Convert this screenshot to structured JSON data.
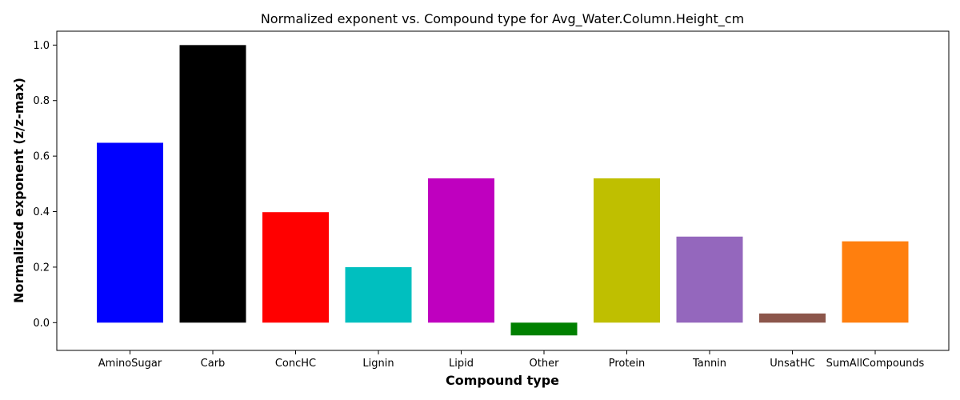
{
  "chart_data": {
    "type": "bar",
    "title": "Normalized exponent vs. Compound type for Avg_Water.Column.Height_cm",
    "xlabel": "Compound type",
    "ylabel": "Normalized exponent (z/z-max)",
    "categories": [
      "AminoSugar",
      "Carb",
      "ConcHC",
      "Lignin",
      "Lipid",
      "Other",
      "Protein",
      "Tannin",
      "UnsatHC",
      "SumAllCompounds"
    ],
    "values": [
      0.648,
      1.0,
      0.398,
      0.2,
      0.52,
      -0.046,
      0.52,
      0.31,
      0.033,
      0.293
    ],
    "colors": [
      "#0000ff",
      "#000000",
      "#ff0000",
      "#00bfbf",
      "#bf00bf",
      "#008000",
      "#bfbf00",
      "#9467bd",
      "#8c564b",
      "#ff7f0e"
    ],
    "ylim": [
      -0.1,
      1.05
    ],
    "yticks": [
      0.0,
      0.2,
      0.4,
      0.6,
      0.8,
      1.0
    ],
    "ytick_labels": [
      "0.0",
      "0.2",
      "0.4",
      "0.6",
      "0.8",
      "1.0"
    ],
    "grid": false,
    "legend": "none"
  }
}
